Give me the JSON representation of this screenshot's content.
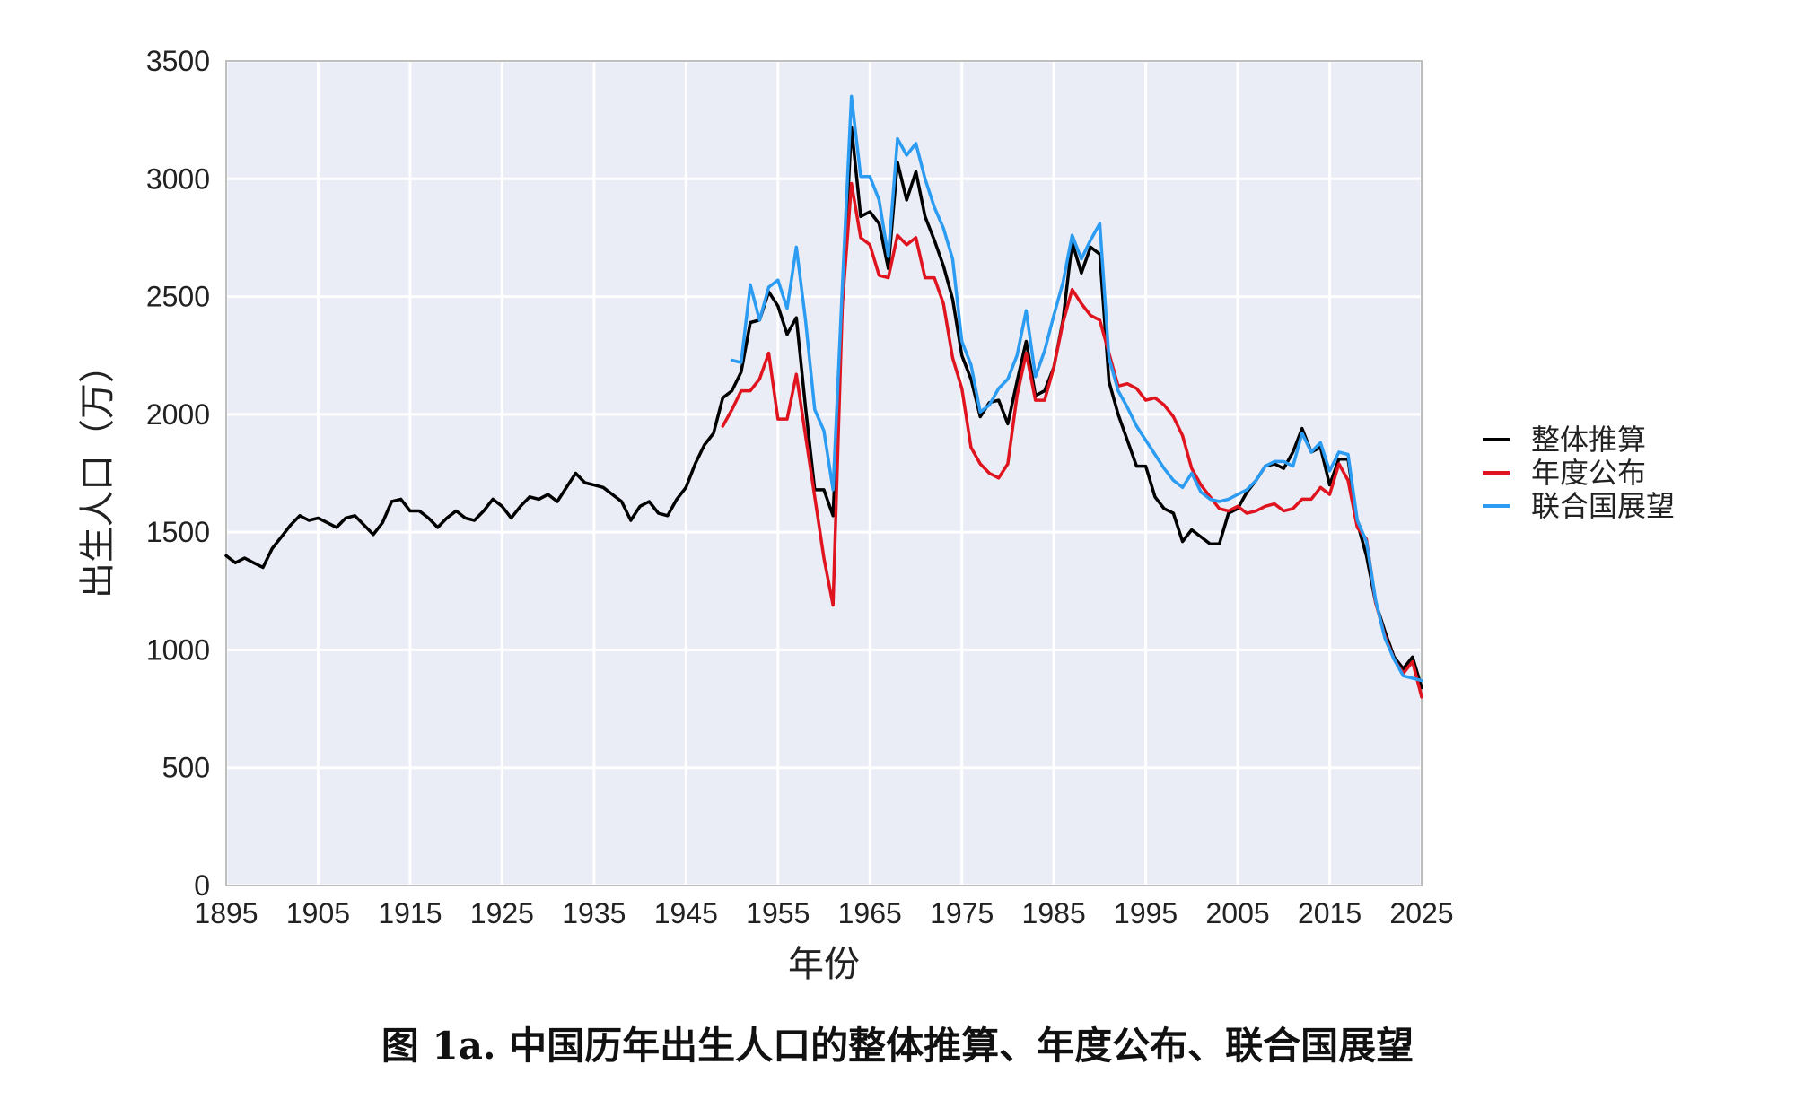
{
  "caption": "图 1a. 中国历年出生人口的整体推算、年度公布、联合国展望",
  "chart_data": {
    "type": "line",
    "xlabel": "年份",
    "ylabel": "出生人口（万）",
    "xlim": [
      1895,
      2025
    ],
    "ylim": [
      0,
      3500
    ],
    "xticks": [
      1895,
      1905,
      1915,
      1925,
      1935,
      1945,
      1955,
      1965,
      1975,
      1985,
      1995,
      2005,
      2015,
      2025
    ],
    "yticks": [
      0,
      500,
      1000,
      1500,
      2000,
      2500,
      3000,
      3500
    ],
    "grid": true,
    "plot_background": "#eaedf6",
    "legend_position": "right",
    "series": [
      {
        "name": "整体推算",
        "color": "#000000",
        "points": [
          [
            1895,
            1400
          ],
          [
            1896,
            1370
          ],
          [
            1897,
            1390
          ],
          [
            1898,
            1370
          ],
          [
            1899,
            1350
          ],
          [
            1900,
            1430
          ],
          [
            1901,
            1480
          ],
          [
            1902,
            1530
          ],
          [
            1903,
            1570
          ],
          [
            1904,
            1550
          ],
          [
            1905,
            1560
          ],
          [
            1906,
            1540
          ],
          [
            1907,
            1520
          ],
          [
            1908,
            1560
          ],
          [
            1909,
            1570
          ],
          [
            1910,
            1530
          ],
          [
            1911,
            1490
          ],
          [
            1912,
            1540
          ],
          [
            1913,
            1630
          ],
          [
            1914,
            1640
          ],
          [
            1915,
            1590
          ],
          [
            1916,
            1590
          ],
          [
            1917,
            1560
          ],
          [
            1918,
            1520
          ],
          [
            1919,
            1560
          ],
          [
            1920,
            1590
          ],
          [
            1921,
            1560
          ],
          [
            1922,
            1550
          ],
          [
            1923,
            1590
          ],
          [
            1924,
            1640
          ],
          [
            1925,
            1610
          ],
          [
            1926,
            1560
          ],
          [
            1927,
            1610
          ],
          [
            1928,
            1650
          ],
          [
            1929,
            1640
          ],
          [
            1930,
            1660
          ],
          [
            1931,
            1630
          ],
          [
            1932,
            1690
          ],
          [
            1933,
            1750
          ],
          [
            1934,
            1710
          ],
          [
            1935,
            1700
          ],
          [
            1936,
            1690
          ],
          [
            1937,
            1660
          ],
          [
            1938,
            1630
          ],
          [
            1939,
            1550
          ],
          [
            1940,
            1610
          ],
          [
            1941,
            1630
          ],
          [
            1942,
            1580
          ],
          [
            1943,
            1570
          ],
          [
            1944,
            1640
          ],
          [
            1945,
            1690
          ],
          [
            1946,
            1790
          ],
          [
            1947,
            1870
          ],
          [
            1948,
            1920
          ],
          [
            1949,
            2070
          ],
          [
            1950,
            2100
          ],
          [
            1951,
            2180
          ],
          [
            1952,
            2390
          ],
          [
            1953,
            2400
          ],
          [
            1954,
            2520
          ],
          [
            1955,
            2460
          ],
          [
            1956,
            2340
          ],
          [
            1957,
            2410
          ],
          [
            1958,
            2030
          ],
          [
            1959,
            1680
          ],
          [
            1960,
            1680
          ],
          [
            1961,
            1570
          ],
          [
            1962,
            2470
          ],
          [
            1963,
            3220
          ],
          [
            1964,
            2840
          ],
          [
            1965,
            2860
          ],
          [
            1966,
            2810
          ],
          [
            1967,
            2620
          ],
          [
            1968,
            3070
          ],
          [
            1969,
            2910
          ],
          [
            1970,
            3030
          ],
          [
            1971,
            2840
          ],
          [
            1972,
            2740
          ],
          [
            1973,
            2630
          ],
          [
            1974,
            2490
          ],
          [
            1975,
            2250
          ],
          [
            1976,
            2150
          ],
          [
            1977,
            1990
          ],
          [
            1978,
            2050
          ],
          [
            1979,
            2060
          ],
          [
            1980,
            1960
          ],
          [
            1981,
            2140
          ],
          [
            1982,
            2310
          ],
          [
            1983,
            2080
          ],
          [
            1984,
            2100
          ],
          [
            1985,
            2200
          ],
          [
            1986,
            2400
          ],
          [
            1987,
            2730
          ],
          [
            1988,
            2600
          ],
          [
            1989,
            2710
          ],
          [
            1990,
            2680
          ],
          [
            1991,
            2140
          ],
          [
            1992,
            2000
          ],
          [
            1993,
            1890
          ],
          [
            1994,
            1780
          ],
          [
            1995,
            1780
          ],
          [
            1996,
            1650
          ],
          [
            1997,
            1600
          ],
          [
            1998,
            1580
          ],
          [
            1999,
            1460
          ],
          [
            2000,
            1510
          ],
          [
            2001,
            1480
          ],
          [
            2002,
            1450
          ],
          [
            2003,
            1450
          ],
          [
            2004,
            1580
          ],
          [
            2005,
            1600
          ],
          [
            2006,
            1670
          ],
          [
            2007,
            1720
          ],
          [
            2008,
            1780
          ],
          [
            2009,
            1790
          ],
          [
            2010,
            1770
          ],
          [
            2011,
            1840
          ],
          [
            2012,
            1940
          ],
          [
            2013,
            1840
          ],
          [
            2014,
            1860
          ],
          [
            2015,
            1700
          ],
          [
            2016,
            1810
          ],
          [
            2017,
            1810
          ],
          [
            2018,
            1540
          ],
          [
            2019,
            1400
          ],
          [
            2020,
            1200
          ],
          [
            2021,
            1080
          ],
          [
            2022,
            970
          ],
          [
            2023,
            920
          ],
          [
            2024,
            970
          ],
          [
            2025,
            840
          ]
        ]
      },
      {
        "name": "年度公布",
        "color": "#e0141e",
        "points": [
          [
            1949,
            1950
          ],
          [
            1950,
            2020
          ],
          [
            1951,
            2100
          ],
          [
            1952,
            2100
          ],
          [
            1953,
            2150
          ],
          [
            1954,
            2260
          ],
          [
            1955,
            1980
          ],
          [
            1956,
            1980
          ],
          [
            1957,
            2170
          ],
          [
            1958,
            1910
          ],
          [
            1959,
            1650
          ],
          [
            1960,
            1390
          ],
          [
            1961,
            1190
          ],
          [
            1962,
            2460
          ],
          [
            1963,
            2980
          ],
          [
            1964,
            2750
          ],
          [
            1965,
            2720
          ],
          [
            1966,
            2590
          ],
          [
            1967,
            2580
          ],
          [
            1968,
            2760
          ],
          [
            1969,
            2720
          ],
          [
            1970,
            2750
          ],
          [
            1971,
            2580
          ],
          [
            1972,
            2580
          ],
          [
            1973,
            2470
          ],
          [
            1974,
            2240
          ],
          [
            1975,
            2110
          ],
          [
            1976,
            1860
          ],
          [
            1977,
            1790
          ],
          [
            1978,
            1750
          ],
          [
            1979,
            1730
          ],
          [
            1980,
            1790
          ],
          [
            1981,
            2080
          ],
          [
            1982,
            2260
          ],
          [
            1983,
            2060
          ],
          [
            1984,
            2060
          ],
          [
            1985,
            2200
          ],
          [
            1986,
            2390
          ],
          [
            1987,
            2530
          ],
          [
            1988,
            2470
          ],
          [
            1989,
            2420
          ],
          [
            1990,
            2400
          ],
          [
            1991,
            2260
          ],
          [
            1992,
            2120
          ],
          [
            1993,
            2130
          ],
          [
            1994,
            2110
          ],
          [
            1995,
            2060
          ],
          [
            1996,
            2070
          ],
          [
            1997,
            2040
          ],
          [
            1998,
            1990
          ],
          [
            1999,
            1910
          ],
          [
            2000,
            1770
          ],
          [
            2001,
            1700
          ],
          [
            2002,
            1650
          ],
          [
            2003,
            1600
          ],
          [
            2004,
            1590
          ],
          [
            2005,
            1610
          ],
          [
            2006,
            1580
          ],
          [
            2007,
            1590
          ],
          [
            2008,
            1610
          ],
          [
            2009,
            1620
          ],
          [
            2010,
            1590
          ],
          [
            2011,
            1600
          ],
          [
            2012,
            1640
          ],
          [
            2013,
            1640
          ],
          [
            2014,
            1690
          ],
          [
            2015,
            1660
          ],
          [
            2016,
            1790
          ],
          [
            2017,
            1720
          ],
          [
            2018,
            1520
          ],
          [
            2019,
            1470
          ],
          [
            2020,
            1200
          ],
          [
            2021,
            1060
          ],
          [
            2022,
            960
          ],
          [
            2023,
            900
          ],
          [
            2024,
            950
          ],
          [
            2025,
            800
          ]
        ]
      },
      {
        "name": "联合国展望",
        "color": "#2b9cf2",
        "points": [
          [
            1950,
            2230
          ],
          [
            1951,
            2220
          ],
          [
            1952,
            2550
          ],
          [
            1953,
            2400
          ],
          [
            1954,
            2540
          ],
          [
            1955,
            2570
          ],
          [
            1956,
            2450
          ],
          [
            1957,
            2710
          ],
          [
            1958,
            2400
          ],
          [
            1959,
            2020
          ],
          [
            1960,
            1930
          ],
          [
            1961,
            1680
          ],
          [
            1962,
            2540
          ],
          [
            1963,
            3350
          ],
          [
            1964,
            3010
          ],
          [
            1965,
            3010
          ],
          [
            1966,
            2910
          ],
          [
            1967,
            2670
          ],
          [
            1968,
            3170
          ],
          [
            1969,
            3100
          ],
          [
            1970,
            3150
          ],
          [
            1971,
            3000
          ],
          [
            1972,
            2880
          ],
          [
            1973,
            2790
          ],
          [
            1974,
            2660
          ],
          [
            1975,
            2310
          ],
          [
            1976,
            2210
          ],
          [
            1977,
            2010
          ],
          [
            1978,
            2040
          ],
          [
            1979,
            2110
          ],
          [
            1980,
            2150
          ],
          [
            1981,
            2250
          ],
          [
            1982,
            2440
          ],
          [
            1983,
            2160
          ],
          [
            1984,
            2270
          ],
          [
            1985,
            2420
          ],
          [
            1986,
            2560
          ],
          [
            1987,
            2760
          ],
          [
            1988,
            2660
          ],
          [
            1989,
            2740
          ],
          [
            1990,
            2810
          ],
          [
            1991,
            2240
          ],
          [
            1992,
            2100
          ],
          [
            1993,
            2030
          ],
          [
            1994,
            1950
          ],
          [
            1995,
            1890
          ],
          [
            1996,
            1830
          ],
          [
            1997,
            1770
          ],
          [
            1998,
            1720
          ],
          [
            1999,
            1690
          ],
          [
            2000,
            1750
          ],
          [
            2001,
            1670
          ],
          [
            2002,
            1640
          ],
          [
            2003,
            1630
          ],
          [
            2004,
            1640
          ],
          [
            2005,
            1660
          ],
          [
            2006,
            1680
          ],
          [
            2007,
            1720
          ],
          [
            2008,
            1780
          ],
          [
            2009,
            1800
          ],
          [
            2010,
            1800
          ],
          [
            2011,
            1780
          ],
          [
            2012,
            1920
          ],
          [
            2013,
            1840
          ],
          [
            2014,
            1880
          ],
          [
            2015,
            1760
          ],
          [
            2016,
            1840
          ],
          [
            2017,
            1830
          ],
          [
            2018,
            1550
          ],
          [
            2019,
            1460
          ],
          [
            2020,
            1210
          ],
          [
            2021,
            1050
          ],
          [
            2022,
            960
          ],
          [
            2023,
            890
          ],
          [
            2024,
            880
          ],
          [
            2025,
            870
          ]
        ]
      }
    ]
  }
}
